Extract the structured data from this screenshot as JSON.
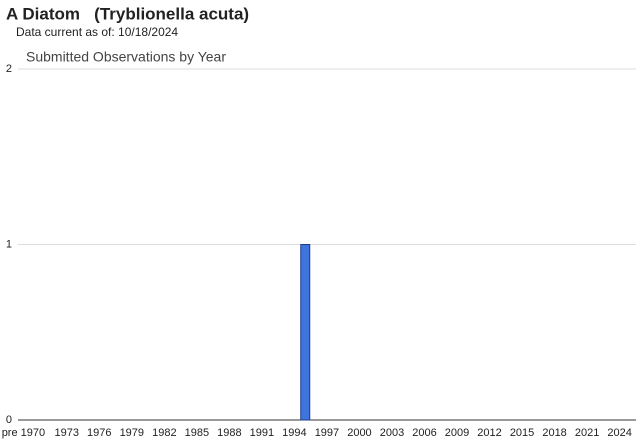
{
  "header": {
    "title": "A Diatom   (Tryblionella acuta)",
    "subtitle": "Data current as of: 10/18/2024"
  },
  "chart_data": {
    "type": "bar",
    "title": "Submitted Observations by Year",
    "categories": [
      "pre 1970",
      null,
      null,
      null,
      "1973",
      null,
      null,
      "1976",
      null,
      null,
      "1979",
      null,
      null,
      "1982",
      null,
      null,
      "1985",
      null,
      null,
      "1988",
      null,
      null,
      "1991",
      null,
      null,
      "1994",
      null,
      null,
      "1997",
      null,
      null,
      "2000",
      null,
      null,
      "2003",
      null,
      null,
      "2006",
      null,
      null,
      "2009",
      null,
      null,
      "2012",
      null,
      null,
      "2015",
      null,
      null,
      "2018",
      null,
      null,
      "2021",
      null,
      null,
      "2024"
    ],
    "values": [
      0,
      0,
      0,
      0,
      0,
      0,
      0,
      0,
      0,
      0,
      0,
      0,
      0,
      0,
      0,
      0,
      0,
      0,
      0,
      0,
      0,
      0,
      0,
      0,
      0,
      0,
      1,
      0,
      0,
      0,
      0,
      0,
      0,
      0,
      0,
      0,
      0,
      0,
      0,
      0,
      0,
      0,
      0,
      0,
      0,
      0,
      0,
      0,
      0,
      0,
      0,
      0,
      0,
      0,
      0,
      0
    ],
    "color": "#3f74dc",
    "ylim": [
      0,
      2
    ],
    "yticks": [
      0,
      1,
      2
    ],
    "grid": true
  }
}
